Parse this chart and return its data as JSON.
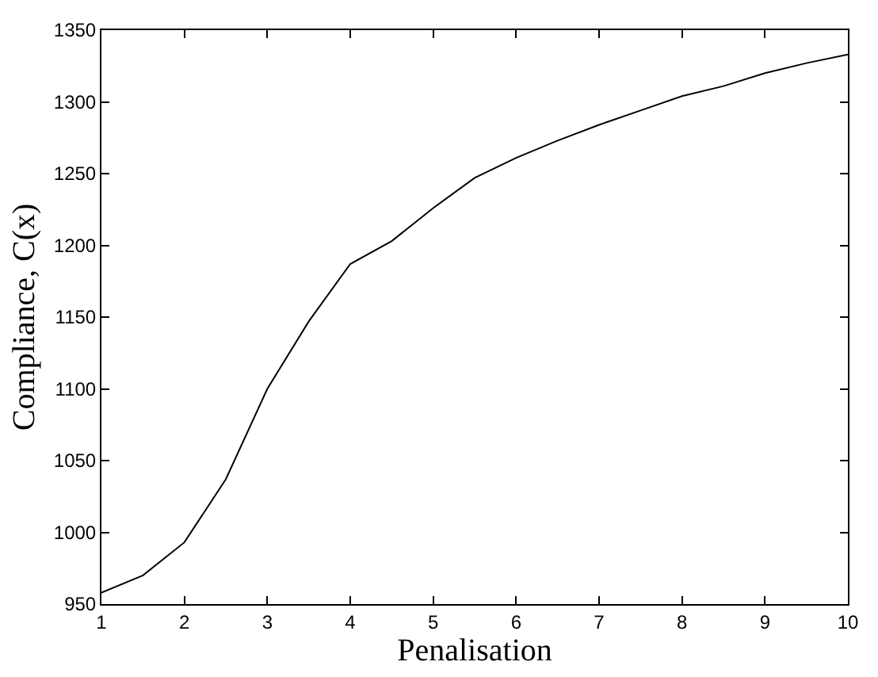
{
  "chart_data": {
    "type": "line",
    "xlabel": "Penalisation",
    "ylabel": "Compliance, C(x)",
    "x": [
      1,
      1.5,
      2,
      2.5,
      3,
      3.5,
      4,
      4.5,
      5,
      5.5,
      6,
      6.5,
      7,
      7.5,
      8,
      8.5,
      9,
      9.5,
      10
    ],
    "series": [
      {
        "color": "#000000",
        "values": [
          958,
          970,
          993,
          1037,
          1100,
          1147,
          1187,
          1203,
          1226,
          1247,
          1261,
          1273,
          1284,
          1294,
          1304,
          1311,
          1320,
          1327,
          1333
        ]
      }
    ],
    "xlim": [
      1,
      10
    ],
    "xticks": [
      1,
      2,
      3,
      4,
      5,
      6,
      7,
      8,
      9,
      10
    ],
    "ylim": [
      950,
      1350
    ],
    "yticks": [
      950,
      1000,
      1050,
      1100,
      1150,
      1200,
      1250,
      1300,
      1350
    ],
    "grid": false,
    "marker": "none",
    "line_style": "solid"
  }
}
